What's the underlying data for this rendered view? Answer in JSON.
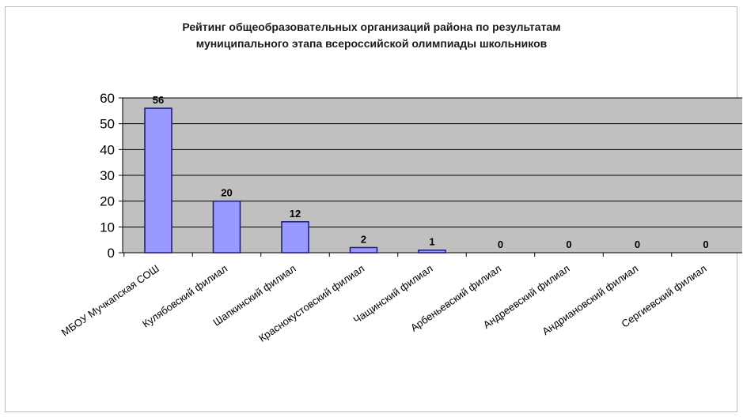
{
  "chart_data": {
    "type": "bar",
    "title_lines": [
      "Рейтинг общеобразовательных организаций района по результатам",
      "муниципального этапа всероссийской олимпиады школьников"
    ],
    "categories": [
      "МБОУ Мучкапская СОШ",
      "Кулябовский филиал",
      "Шапкинский филиал",
      "Краснокустовский филиал",
      "Чащинский филиал",
      "Арбеньевский филиал",
      "Андреевский филиал",
      "Андриановский филиал",
      "Сергиевский филиал"
    ],
    "values": [
      56,
      20,
      12,
      2,
      1,
      0,
      0,
      0,
      0
    ],
    "y_ticks": [
      0,
      10,
      20,
      30,
      40,
      50,
      60
    ],
    "ylim": [
      0,
      60
    ],
    "grid": true,
    "legend": false,
    "colors": {
      "bar_fill": "#9999ff",
      "bar_stroke": "#1a1a6e",
      "plot_background": "#c0c0c0",
      "grid": "#000000"
    }
  }
}
